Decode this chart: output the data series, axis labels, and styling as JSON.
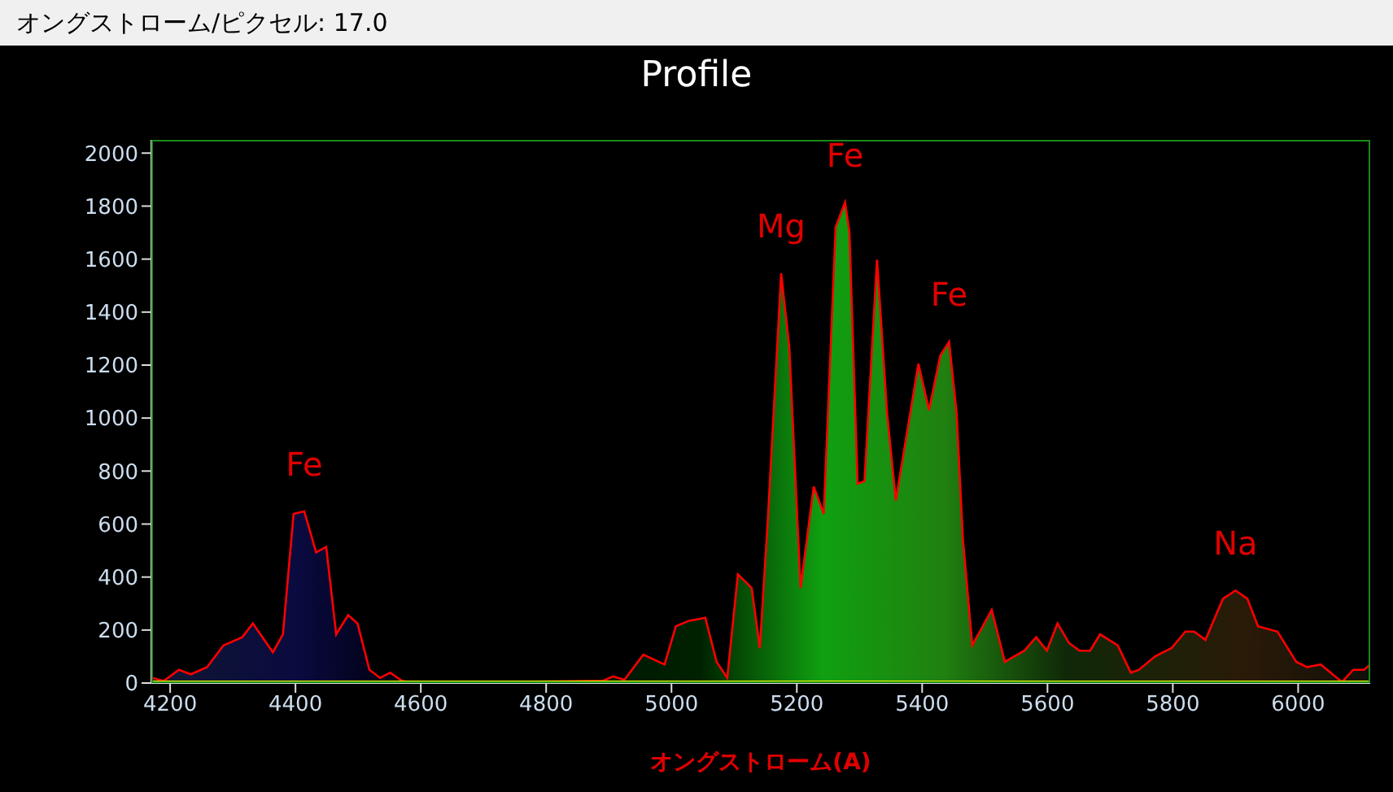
{
  "chart_data": {
    "type": "area",
    "title": "Profile",
    "xlabel": "オングストローム(A)",
    "annotations": [
      "オングストローム/ピクセル: 17.0",
      {
        "text": "Fe",
        "x": 4414,
        "y": 648
      },
      {
        "text": "Mg",
        "x": 5175,
        "y": 1546
      },
      {
        "text": "Fe",
        "x": 5277,
        "y": 1814
      },
      {
        "text": "Fe",
        "x": 5443,
        "y": 1288
      },
      {
        "text": "Na",
        "x": 5900,
        "y": 349
      }
    ],
    "xlim": [
      4170,
      6115
    ],
    "xticks": [
      4200,
      4400,
      4600,
      4800,
      5000,
      5200,
      5400,
      5600,
      5800,
      6000
    ],
    "ylim": [
      0,
      2050
    ],
    "yticks": [
      0,
      200,
      400,
      600,
      800,
      1000,
      1200,
      1400,
      1600,
      1800,
      2000
    ],
    "grid": false,
    "legend": false,
    "marker": "none",
    "series": [
      {
        "color": "#ff0000",
        "x": [
          4172,
          4190,
          4214,
          4233,
          4259,
          4285,
          4315,
          4332,
          4364,
          4380,
          4397,
          4414,
          4433,
          4449,
          4465,
          4484,
          4499,
          4518,
          4535,
          4551,
          4570,
          4587,
          4890,
          4907,
          4925,
          4955,
          4989,
          5007,
          5028,
          5054,
          5072,
          5089,
          5106,
          5128,
          5141,
          5154,
          5175,
          5188,
          5206,
          5227,
          5243,
          5262,
          5277,
          5284,
          5297,
          5308,
          5328,
          5344,
          5358,
          5394,
          5411,
          5429,
          5443,
          5455,
          5465,
          5480,
          5511,
          5532,
          5563,
          5582,
          5599,
          5616,
          5634,
          5651,
          5668,
          5684,
          5712,
          5733,
          5746,
          5772,
          5798,
          5820,
          5834,
          5852,
          5880,
          5900,
          5919,
          5936,
          5967,
          5997,
          6014,
          6036,
          6070,
          6088,
          6105,
          6115
        ],
        "values": [
          19,
          8,
          50,
          33,
          60,
          142,
          173,
          225,
          116,
          184,
          638,
          648,
          493,
          514,
          184,
          256,
          225,
          50,
          19,
          39,
          8,
          0,
          8,
          25,
          12,
          107,
          70,
          214,
          235,
          246,
          80,
          19,
          410,
          359,
          132,
          627,
          1546,
          1267,
          359,
          741,
          638,
          1721,
          1814,
          1700,
          752,
          762,
          1598,
          1019,
          689,
          1205,
          1030,
          1236,
          1288,
          1019,
          545,
          142,
          276,
          80,
          122,
          173,
          122,
          225,
          152,
          122,
          122,
          184,
          142,
          39,
          50,
          101,
          132,
          194,
          194,
          163,
          318,
          349,
          318,
          214,
          194,
          80,
          60,
          70,
          4,
          50,
          50,
          70
        ]
      },
      {
        "type": "line",
        "color": "#ffff00",
        "x": [
          4170,
          6115
        ],
        "values": [
          0,
          0
        ]
      }
    ]
  }
}
